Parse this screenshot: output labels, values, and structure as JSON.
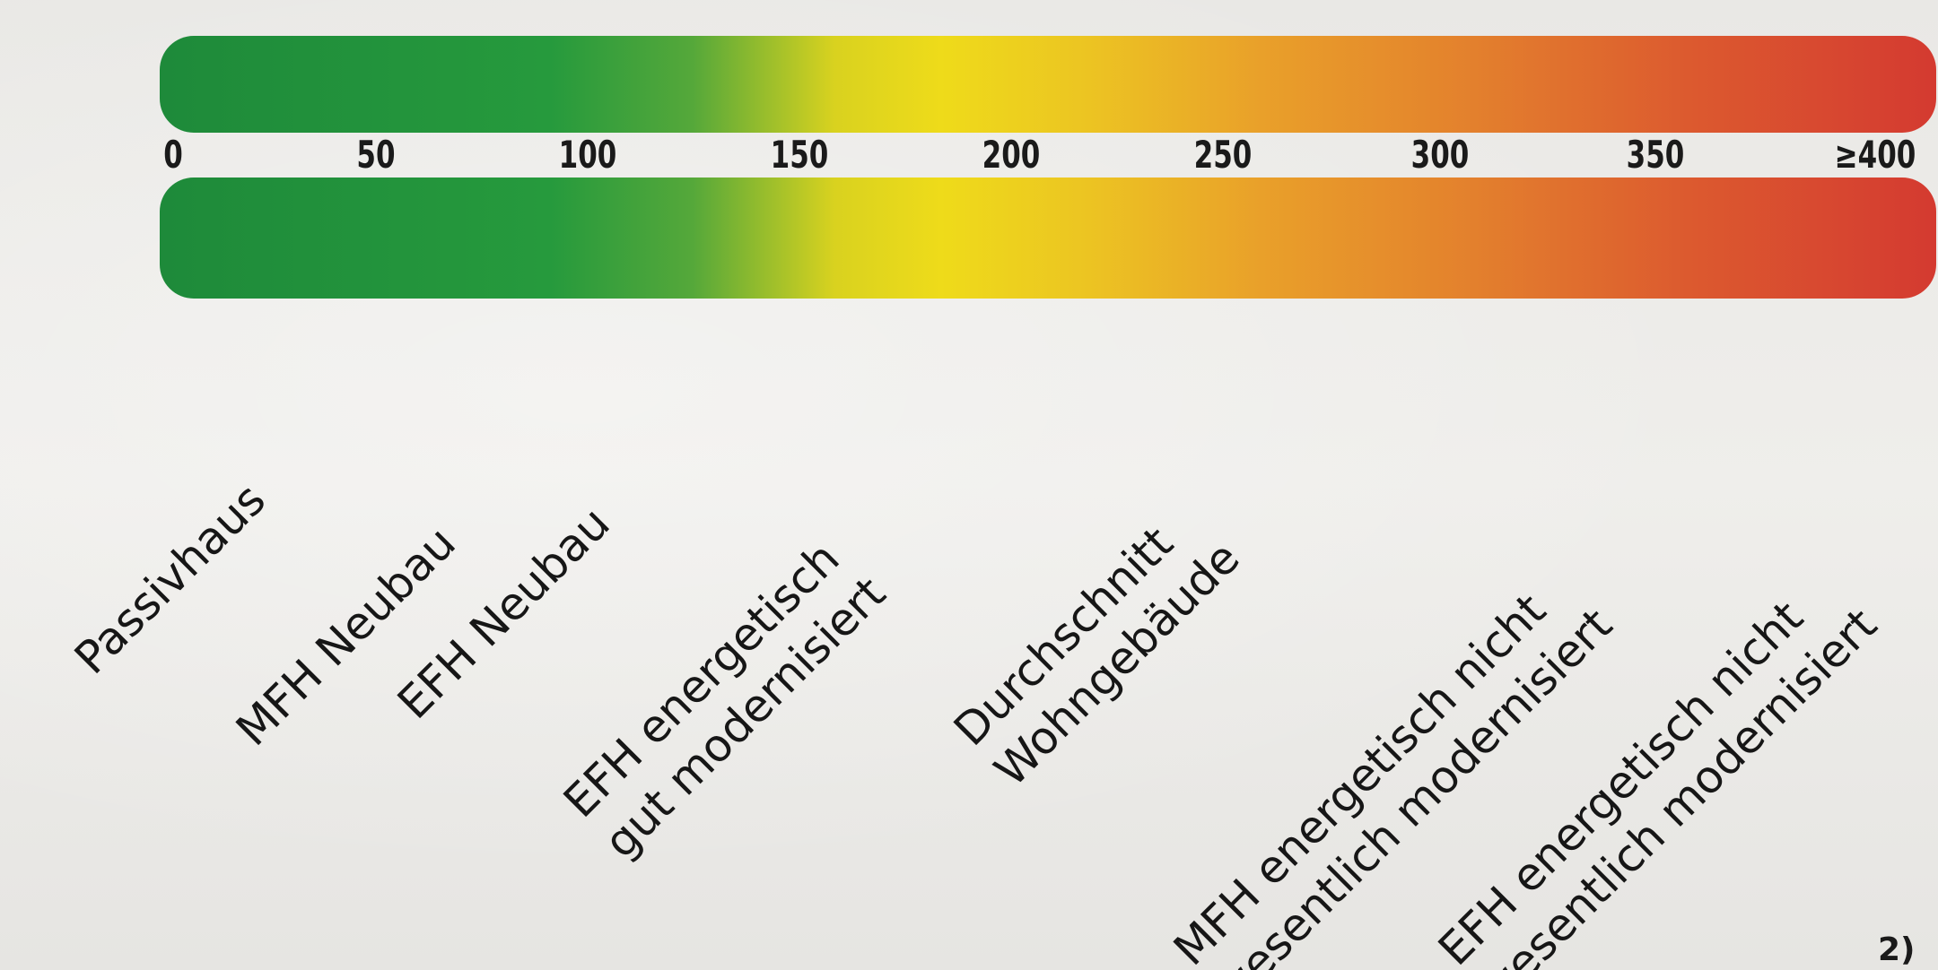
{
  "scale": {
    "min": 0,
    "max": 400,
    "colors": [
      "#1e8a3a",
      "#eedb1a",
      "#e9a02a",
      "#d43a30"
    ],
    "ticks": [
      {
        "value": 0,
        "label": "0"
      },
      {
        "value": 50,
        "label": "50"
      },
      {
        "value": 100,
        "label": "100"
      },
      {
        "value": 150,
        "label": "150"
      },
      {
        "value": 200,
        "label": "200"
      },
      {
        "value": 250,
        "label": "250"
      },
      {
        "value": 300,
        "label": "300"
      },
      {
        "value": 350,
        "label": "350"
      },
      {
        "value": 400,
        "label": "≥400"
      }
    ]
  },
  "categories": [
    {
      "lines": [
        "Passivhaus"
      ]
    },
    {
      "lines": [
        "MFH Neubau"
      ]
    },
    {
      "lines": [
        "EFH Neubau"
      ]
    },
    {
      "lines": [
        "EFH energetisch",
        "gut modernisiert"
      ]
    },
    {
      "lines": [
        "Durchschnitt",
        "Wohngebäude"
      ]
    },
    {
      "lines": [
        "MFH energetisch nicht",
        "wesentlich modernisiert"
      ]
    },
    {
      "lines": [
        "EFH energetisch nicht",
        "wesentlich modernisiert"
      ]
    }
  ],
  "footnote": "2)"
}
